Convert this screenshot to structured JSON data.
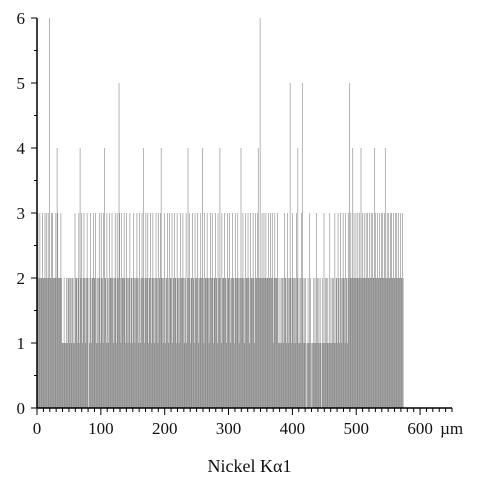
{
  "chart_data": {
    "type": "bar",
    "title": "",
    "xlabel": "Nickel Kα1",
    "ylabel": "",
    "x_unit_label": "µm",
    "xlim": [
      0,
      650
    ],
    "ylim": [
      0,
      6
    ],
    "x_ticks": [
      0,
      100,
      200,
      300,
      400,
      500,
      600
    ],
    "y_ticks": [
      0,
      1,
      2,
      3,
      4,
      5,
      6
    ],
    "bar_color": "#8c8c8c",
    "grid": false,
    "series": [
      {
        "x_step_um": 1,
        "counts": [
          2,
          3,
          2,
          2,
          3,
          2,
          2,
          2,
          3,
          2,
          2,
          2,
          3,
          2,
          3,
          2,
          2,
          3,
          2,
          6,
          2,
          2,
          3,
          2,
          3,
          2,
          2,
          2,
          2,
          3,
          2,
          4,
          3,
          2,
          2,
          2,
          2,
          3,
          2,
          1,
          1,
          1,
          2,
          1,
          1,
          1,
          2,
          1,
          2,
          2,
          2,
          1,
          2,
          2,
          1,
          2,
          2,
          1,
          1,
          3,
          2,
          2,
          2,
          1,
          2,
          3,
          1,
          4,
          2,
          3,
          2,
          1,
          2,
          3,
          2,
          2,
          1,
          2,
          3,
          2,
          0,
          2,
          1,
          3,
          2,
          1,
          2,
          2,
          3,
          2,
          2,
          3,
          2,
          1,
          2,
          1,
          2,
          3,
          2,
          1,
          3,
          2,
          2,
          1,
          3,
          4,
          2,
          2,
          1,
          3,
          2,
          1,
          2,
          3,
          2,
          2,
          2,
          3,
          2,
          1,
          2,
          2,
          3,
          2,
          1,
          3,
          2,
          2,
          5,
          3,
          2,
          1,
          3,
          2,
          2,
          2,
          3,
          2,
          1,
          2,
          3,
          2,
          1,
          2,
          2,
          3,
          1,
          2,
          2,
          1,
          2,
          3,
          2,
          1,
          2,
          2,
          3,
          2,
          2,
          1,
          3,
          2,
          1,
          2,
          3,
          2,
          4,
          2,
          1,
          2,
          3,
          2,
          2,
          3,
          1,
          2,
          2,
          3,
          2,
          1,
          2,
          3,
          2,
          2,
          1,
          2,
          3,
          2,
          2,
          1,
          3,
          2,
          2,
          3,
          4,
          2,
          2,
          1,
          2,
          3,
          2,
          1,
          2,
          2,
          3,
          2,
          1,
          3,
          2,
          2,
          2,
          3,
          1,
          2,
          2,
          3,
          2,
          2,
          1,
          3,
          2,
          2,
          1,
          2,
          3,
          2,
          2,
          2,
          3,
          2,
          1,
          2,
          2,
          3,
          1,
          2,
          4,
          2,
          3,
          2,
          1,
          2,
          2,
          3,
          2,
          2,
          1,
          3,
          2,
          2,
          2,
          3,
          2,
          1,
          2,
          2,
          3,
          2,
          2,
          4,
          2,
          1,
          3,
          2,
          2,
          2,
          3,
          2,
          2,
          1,
          2,
          3,
          2,
          2,
          3,
          2,
          1,
          2,
          2,
          3,
          2,
          2,
          1,
          3,
          2,
          2,
          4,
          2,
          1,
          3,
          2,
          2,
          2,
          3,
          2,
          2,
          1,
          2,
          3,
          2,
          2,
          3,
          2,
          1,
          2,
          2,
          3,
          2,
          2,
          1,
          3,
          2,
          2,
          2,
          3,
          2,
          1,
          2,
          2,
          4,
          2,
          2,
          3,
          2,
          1,
          2,
          3,
          2,
          2,
          2,
          3,
          2,
          1,
          2,
          3,
          2,
          2,
          2,
          3,
          2,
          1,
          2,
          3,
          2,
          2,
          3,
          4,
          2,
          2,
          6,
          2,
          2,
          3,
          2,
          2,
          3,
          2,
          2,
          3,
          2,
          2,
          2,
          3,
          2,
          2,
          3,
          2,
          2,
          3,
          2,
          1,
          2,
          3,
          2,
          2,
          2,
          3,
          2,
          1,
          1,
          2,
          1,
          2,
          1,
          2,
          2,
          1,
          3,
          2,
          2,
          1,
          2,
          3,
          2,
          1,
          2,
          5,
          2,
          1,
          2,
          3,
          2,
          1,
          2,
          2,
          1,
          3,
          2,
          4,
          1,
          2,
          1,
          2,
          1,
          3,
          5,
          2,
          1,
          2,
          1,
          2,
          1,
          0,
          1,
          2,
          1,
          3,
          1,
          2,
          1,
          0,
          1,
          1,
          2,
          1,
          2,
          1,
          3,
          1,
          2,
          1,
          2,
          1,
          2,
          1,
          0,
          1,
          2,
          1,
          3,
          1,
          2,
          1,
          2,
          1,
          2,
          1,
          1,
          3,
          1,
          2,
          1,
          2,
          1,
          2,
          1,
          3,
          1,
          2,
          2,
          1,
          3,
          2,
          1,
          2,
          3,
          2,
          1,
          2,
          3,
          2,
          2,
          1,
          3,
          2,
          2,
          1,
          3,
          2,
          5,
          2,
          3,
          2,
          2,
          4,
          2,
          3,
          2,
          2,
          3,
          2,
          2,
          3,
          2,
          2,
          3,
          2,
          4,
          2,
          3,
          2,
          2,
          3,
          2,
          2,
          3,
          2,
          3,
          2,
          2,
          3,
          2,
          2,
          3,
          2,
          3,
          2,
          2,
          4,
          2,
          3,
          2,
          2,
          3,
          2,
          2,
          3,
          2,
          2,
          3,
          2,
          3,
          2,
          2,
          3,
          4,
          2,
          2,
          3,
          2,
          3,
          2,
          2,
          3,
          2,
          3,
          2,
          2,
          3,
          2,
          2,
          3,
          2,
          3,
          2,
          2,
          3,
          2,
          2,
          3,
          2,
          2,
          3,
          2
        ]
      }
    ]
  }
}
